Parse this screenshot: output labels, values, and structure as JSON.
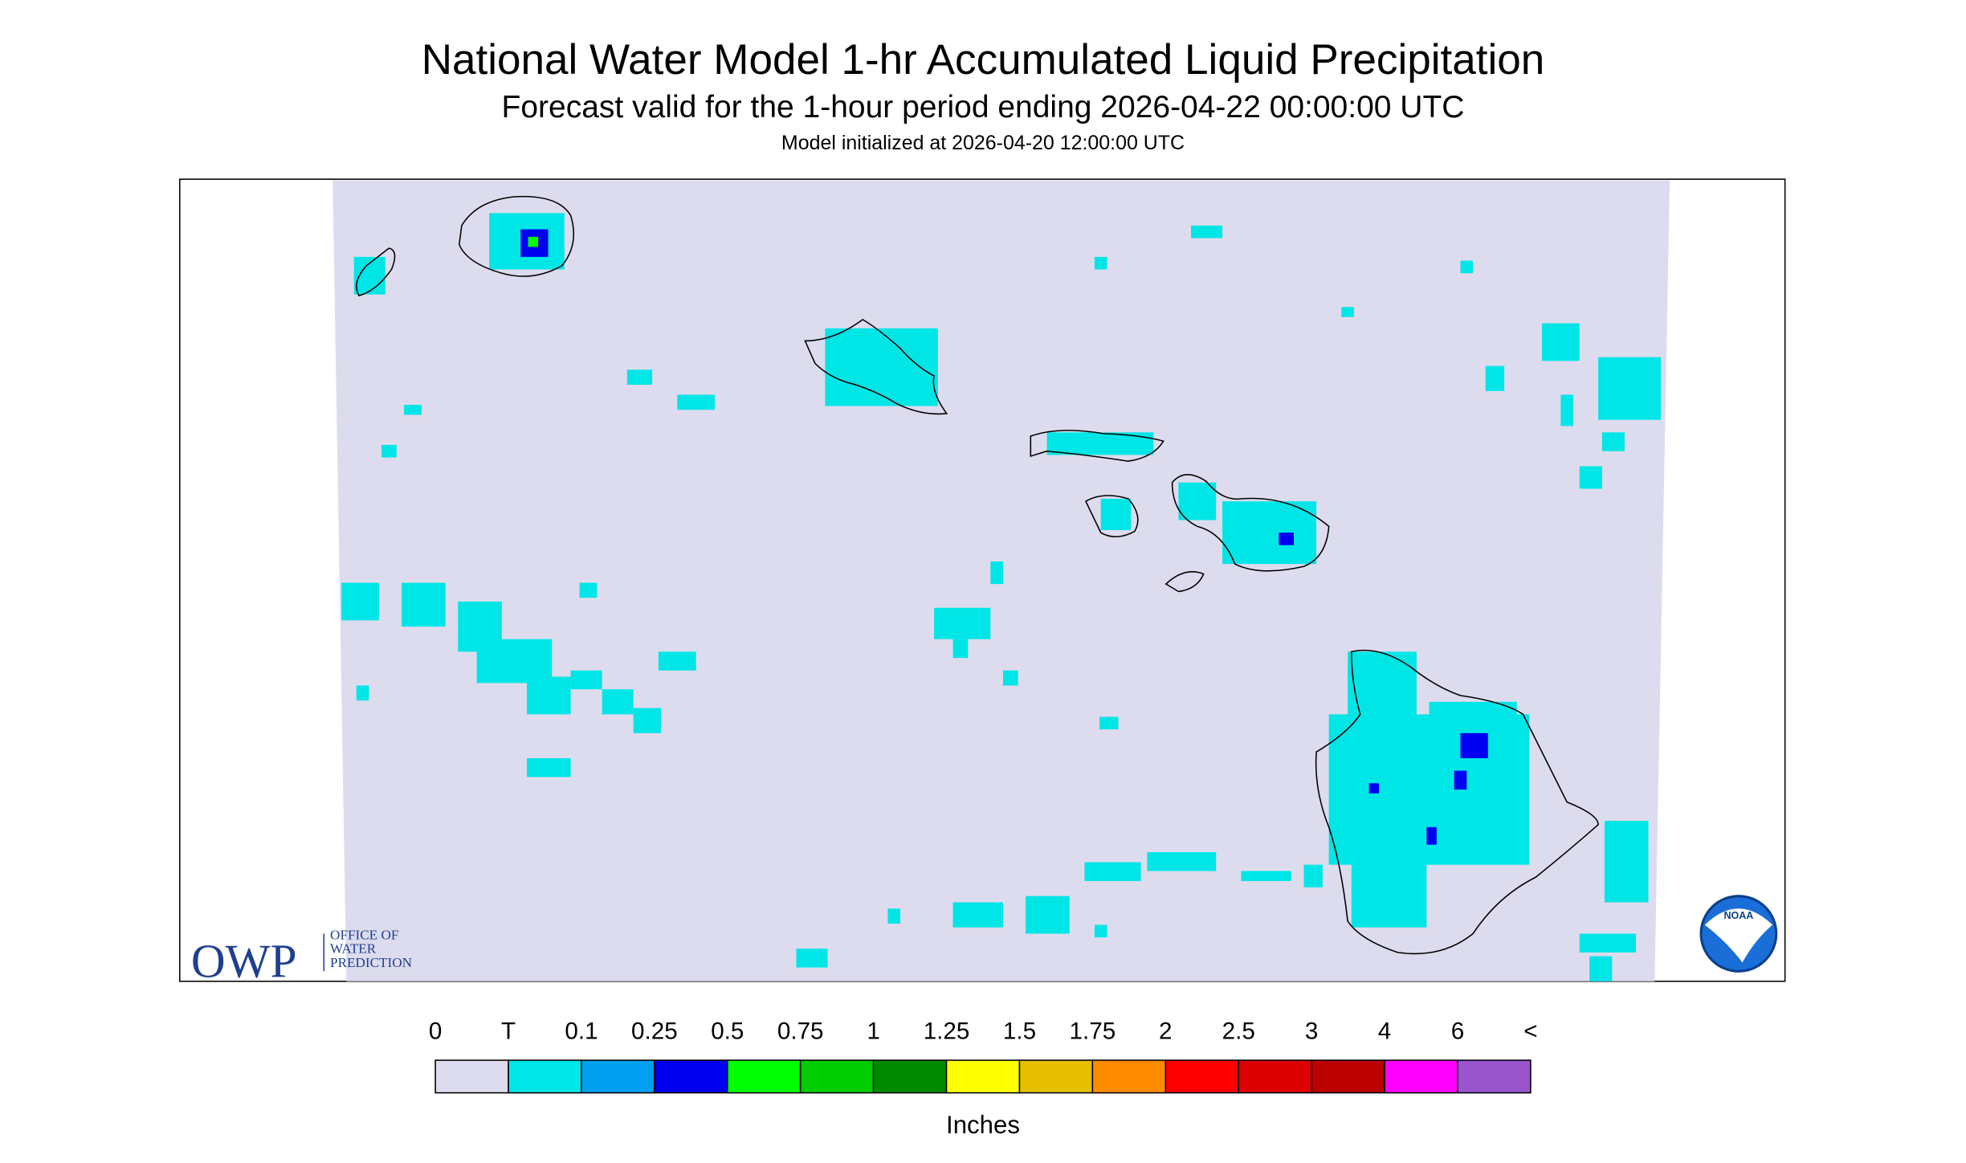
{
  "header": {
    "title": "National Water Model 1-hr Accumulated Liquid Precipitation",
    "subtitle": "Forecast valid for the 1-hour period ending 2026-04-22 00:00:00 UTC",
    "note": "Model initialized at 2026-04-20 12:00:00 UTC"
  },
  "colorbar": {
    "labels": [
      "0",
      "T",
      "0.1",
      "0.25",
      "0.5",
      "0.75",
      "1",
      "1.25",
      "1.5",
      "1.75",
      "2",
      "2.5",
      "3",
      "4",
      "6",
      "<"
    ],
    "colors": [
      "#dcdcee",
      "#00e6e6",
      "#009ff0",
      "#0000f0",
      "#00ff00",
      "#00cc00",
      "#008a00",
      "#ffff00",
      "#e6bf00",
      "#ff8c00",
      "#ff0000",
      "#dd0000",
      "#bb0000",
      "#ff00ff",
      "#9955cc"
    ],
    "unit": "Inches"
  },
  "logos": {
    "owp": "OWP",
    "owp_lines": [
      "OFFICE OF",
      "WATER",
      "PREDICTION"
    ],
    "noaa": "NOAA"
  }
}
